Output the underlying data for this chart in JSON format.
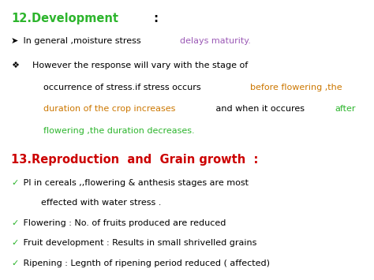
{
  "bg_color": "#ffffff",
  "figsize": [
    4.74,
    3.55
  ],
  "dpi": 100,
  "heading1_green": "12.Development",
  "heading1_black": " :",
  "heading1_color": "#2db52d",
  "heading1_suffix_color": "#000000",
  "heading1_fs": 10.5,
  "heading2": "13.Reproduction  and  Grain growth  :",
  "heading2_color": "#cc0000",
  "heading2_fs": 10.5,
  "body_fs": 8.0,
  "bullet1_arrow": "➤",
  "bullet1_black": " In general ,moisture stress ",
  "bullet1_purple": "delays maturity.",
  "bullet1_purple_color": "#9b59b6",
  "bullet2_sym": "❖",
  "bullet2_line1": "However the response will vary with the stage of",
  "bullet2_line2_black": "occurrence of stress.if stress occurs ",
  "bullet2_line2_orange": "before flowering ,the",
  "bullet2_line3_orange": "duration of the crop increases",
  "bullet2_line3_black": " and when it occures ",
  "bullet2_line3_green_end": "after",
  "bullet2_line4_green": "flowering ,the duration decreases.",
  "orange_color": "#cc7700",
  "green_color": "#2db52d",
  "black_color": "#000000",
  "check_mark": "✓",
  "check_color": "#2db52d",
  "check1a": " PI in cereals ,,flowering & anthesis stages are most",
  "check1b": "effected with water stress .",
  "check2": " Flowering : No. of fruits produced are reduced",
  "check3": " Fruit development : Results in small shrivelled grains",
  "check4": " Ripening : Legnth of ripening period reduced ( affected)"
}
